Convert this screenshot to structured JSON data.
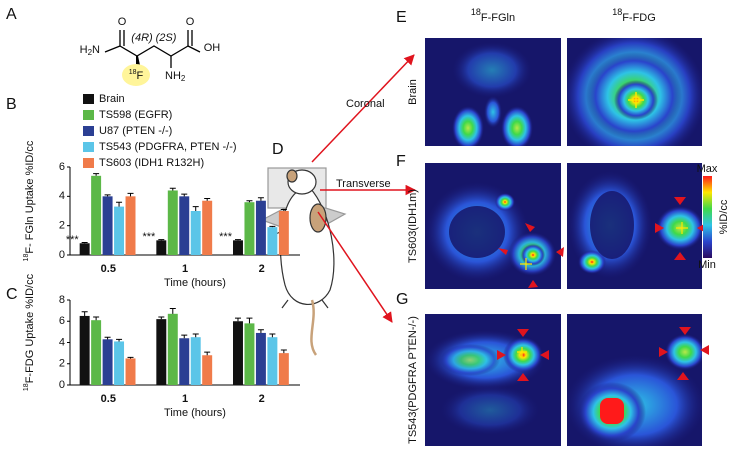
{
  "panel_labels": [
    "A",
    "B",
    "C",
    "D",
    "E",
    "F",
    "G"
  ],
  "molecule": {
    "o1": "O",
    "o2": "O",
    "oh": "OH",
    "h2n": {
      "main": "H",
      "sub": "2",
      "tail": "N"
    },
    "nh2": {
      "main": "NH",
      "sub": "2"
    },
    "stereo1": "(4R)",
    "stereo2": "(2S)",
    "fluorine": {
      "sup": "18",
      "main": "F"
    }
  },
  "chart_data": [
    {
      "type": "bar",
      "y_label": {
        "sup": "18",
        "main": "F- FGln Uptake %ID/cc"
      },
      "x_label": "Time (hours)",
      "categories": [
        "0.5",
        "1",
        "2"
      ],
      "ylim": [
        0,
        6
      ],
      "yticks": [
        0,
        2,
        4,
        6
      ],
      "annotations": [
        "***",
        "***",
        "***"
      ],
      "series": [
        {
          "name": "Brain",
          "color": "#111111",
          "values": [
            0.8,
            1.0,
            1.0
          ],
          "errors": [
            0.05,
            0.05,
            0.05
          ]
        },
        {
          "name": "TS598 (EGFR)",
          "color": "#5cb848",
          "values": [
            5.4,
            4.4,
            3.6
          ],
          "errors": [
            0.15,
            0.15,
            0.1
          ]
        },
        {
          "name": "U87 (PTEN -/-)",
          "color": "#2b3f93",
          "values": [
            4.0,
            4.0,
            3.7
          ],
          "errors": [
            0.1,
            0.15,
            0.2
          ]
        },
        {
          "name": "TS543 (PDGFRA, PTEN -/-)",
          "color": "#5bc5e8",
          "values": [
            3.3,
            3.0,
            1.9
          ],
          "errors": [
            0.3,
            0.3,
            0.05
          ]
        },
        {
          "name": "TS603 (IDH1 R132H)",
          "color": "#f07b4a",
          "values": [
            4.0,
            3.7,
            3.0
          ],
          "errors": [
            0.2,
            0.15,
            0.1
          ]
        }
      ]
    },
    {
      "type": "bar",
      "y_label": {
        "sup": "18",
        "main": "F-FDG Uptake %ID/cc"
      },
      "x_label": "Time (hours)",
      "categories": [
        "0.5",
        "1",
        "2"
      ],
      "ylim": [
        0,
        8
      ],
      "yticks": [
        0,
        2,
        4,
        6,
        8
      ],
      "series": [
        {
          "color": "#111111",
          "values": [
            6.5,
            6.2,
            6.0
          ],
          "errors": [
            0.4,
            0.2,
            0.3
          ]
        },
        {
          "color": "#5cb848",
          "values": [
            6.1,
            6.7,
            5.8
          ],
          "errors": [
            0.3,
            0.5,
            0.5
          ]
        },
        {
          "color": "#2b3f93",
          "values": [
            4.3,
            4.4,
            4.9
          ],
          "errors": [
            0.2,
            0.3,
            0.3
          ]
        },
        {
          "color": "#5bc5e8",
          "values": [
            4.1,
            4.5,
            4.5
          ],
          "errors": [
            0.2,
            0.3,
            0.3
          ]
        },
        {
          "color": "#f07b4a",
          "values": [
            2.5,
            2.8,
            3.0
          ],
          "errors": [
            0.1,
            0.3,
            0.3
          ]
        }
      ]
    }
  ],
  "views": {
    "arrows": [
      "Coronal",
      "Transverse"
    ],
    "columns": [
      {
        "sup": "18",
        "main": "F-FGln"
      },
      {
        "sup": "18",
        "main": "F-FDG"
      }
    ],
    "rows": [
      "Brain",
      "TS603(IDH1m)",
      "TS543(PDGFRA PTEN-/-)"
    ],
    "colorbar": {
      "max": "Max",
      "min": "Min",
      "unit": "%ID/cc"
    }
  }
}
